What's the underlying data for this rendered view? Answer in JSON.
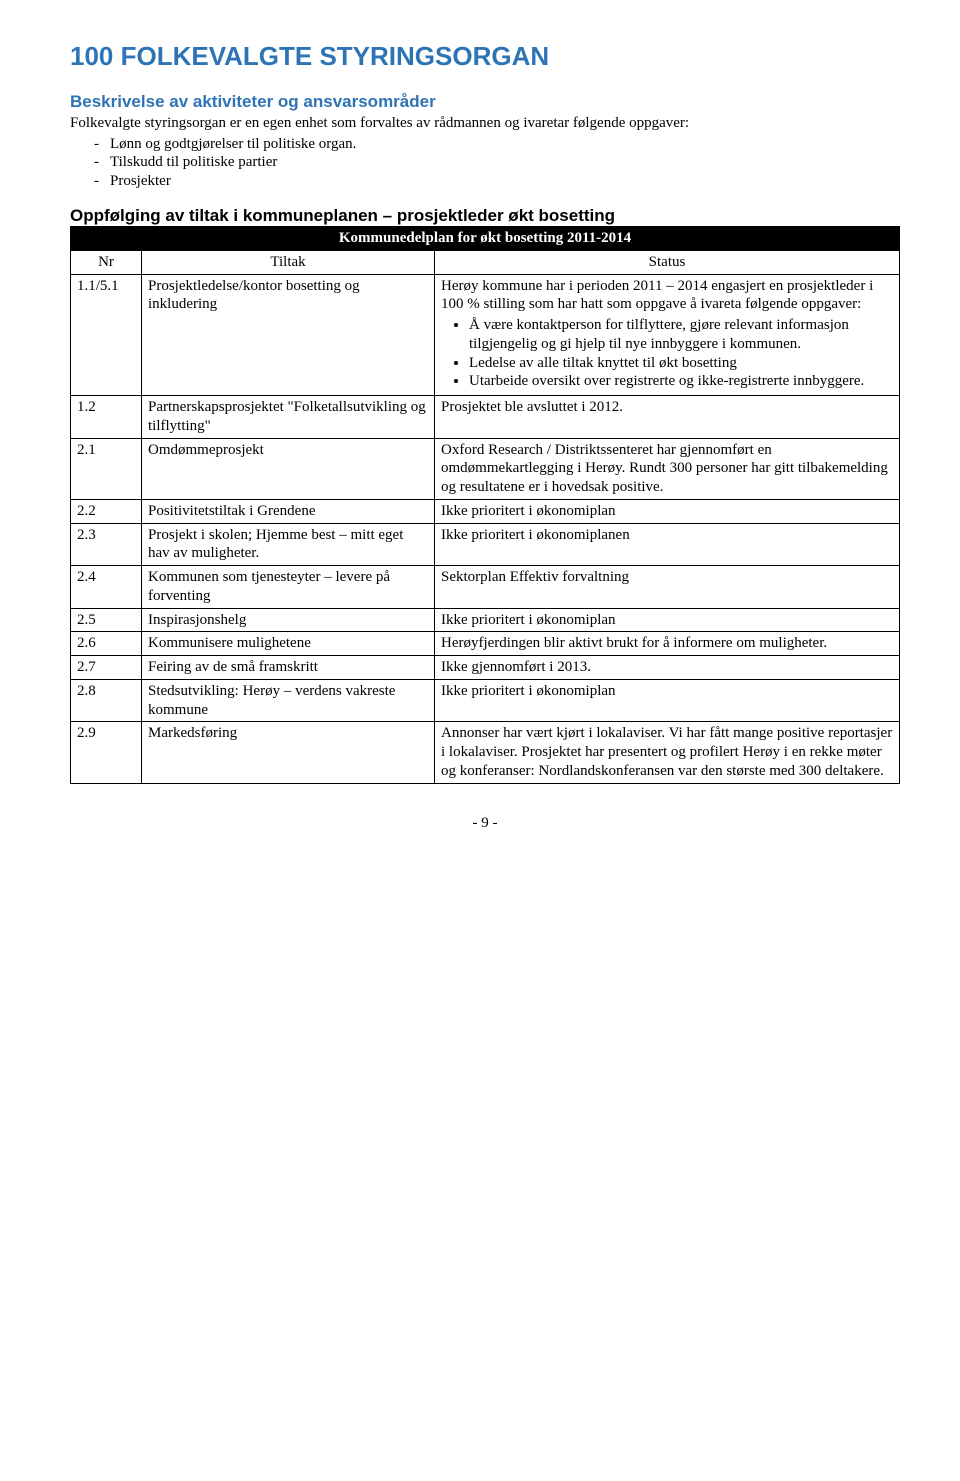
{
  "title": "100 FOLKEVALGTE STYRINGSORGAN",
  "section_heading": "Beskrivelse av aktiviteter og ansvarsområder",
  "intro": "Folkevalgte styringsorgan er en egen enhet som forvaltes av rådmannen og ivaretar følgende oppgaver:",
  "bullets": [
    "Lønn og godtgjørelser til politiske organ.",
    "Tilskudd til politiske partier",
    "Prosjekter"
  ],
  "followup_heading": "Oppfølging av tiltak i kommuneplanen – prosjektleder økt bosetting",
  "table_caption": "Kommunedelplan for økt bosetting 2011-2014",
  "cols": {
    "nr": "Nr",
    "tiltak": "Tiltak",
    "status": "Status"
  },
  "row1": {
    "nr": "1.1/5.1",
    "tiltak": "Prosjektledelse/kontor bosetting og inkludering",
    "status_intro": "Herøy kommune har i perioden 2011 – 2014 engasjert en prosjektleder i 100 % stilling som har hatt som oppgave å ivareta følgende oppgaver:",
    "b1": "Å være kontaktperson for tilflyttere, gjøre relevant informasjon tilgjengelig og gi hjelp til nye innbyggere i kommunen.",
    "b2": "Ledelse av alle tiltak knyttet til økt bosetting",
    "b3": "Utarbeide oversikt over registrerte og ikke-registrerte innbyggere."
  },
  "row2": {
    "nr": "1.2",
    "tiltak": "Partnerskapsprosjektet \"Folketallsutvikling og tilflytting\"",
    "status": "Prosjektet ble avsluttet i 2012."
  },
  "row3": {
    "nr": "2.1",
    "tiltak": "Omdømmeprosjekt",
    "status": "Oxford Research / Distriktssenteret har gjennomført en omdømmekartlegging i Herøy. Rundt 300 personer har gitt tilbakemelding og resultatene er i hovedsak positive."
  },
  "row4": {
    "nr": "2.2",
    "tiltak": "Positivitetstiltak i Grendene",
    "status": "Ikke prioritert i økonomiplan"
  },
  "row5": {
    "nr": "2.3",
    "tiltak": "Prosjekt i skolen; Hjemme best – mitt eget hav av muligheter.",
    "status": "Ikke prioritert i økonomiplanen"
  },
  "row6": {
    "nr": "2.4",
    "tiltak": "Kommunen som tjenesteyter – levere på forventing",
    "status": "Sektorplan Effektiv forvaltning"
  },
  "row7": {
    "nr": "2.5",
    "tiltak": "Inspirasjonshelg",
    "status": "Ikke prioritert i økonomiplan"
  },
  "row8": {
    "nr": "2.6",
    "tiltak": "Kommunisere mulighetene",
    "status": "Herøyfjerdingen blir aktivt brukt for å informere om muligheter."
  },
  "row9": {
    "nr": "2.7",
    "tiltak": "Feiring av de små framskritt",
    "status": "Ikke gjennomført i 2013."
  },
  "row10": {
    "nr": "2.8",
    "tiltak": "Stedsutvikling: Herøy – verdens vakreste kommune",
    "status": "Ikke prioritert i økonomiplan"
  },
  "row11": {
    "nr": "2.9",
    "tiltak": "Markedsføring",
    "status": "Annonser har vært kjørt i lokalaviser. Vi har fått mange positive reportasjer i lokalaviser. Prosjektet har presentert og profilert Herøy i en rekke møter og konferanser: Nordlandskonferansen var den største med 300 deltakere."
  },
  "pagenum": "- 9 -"
}
